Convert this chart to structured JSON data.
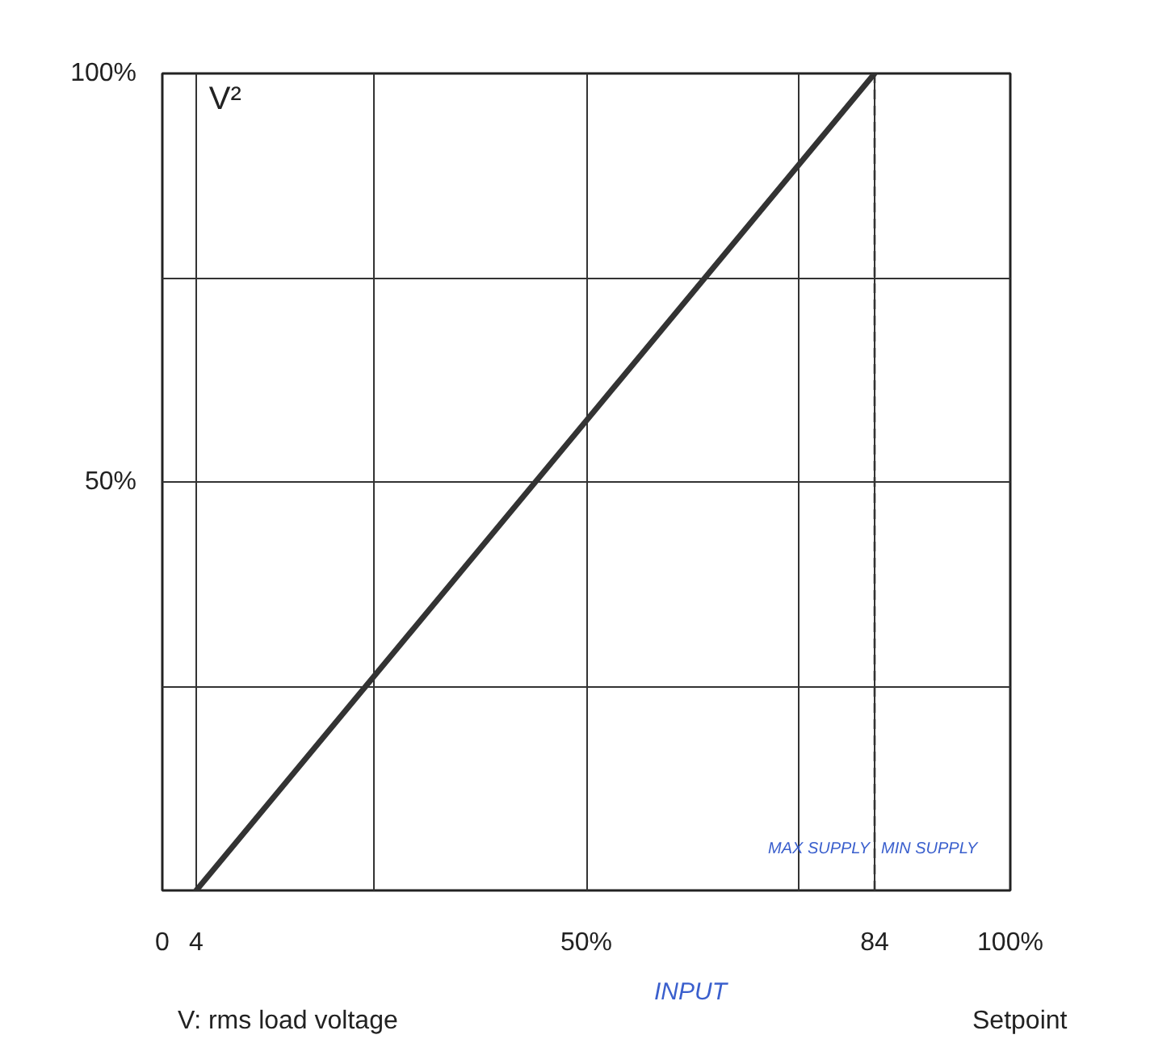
{
  "chart_data": {
    "type": "line",
    "ylabel": "V²",
    "xlabel": "V: rms load voltage",
    "xlim": [
      0,
      100
    ],
    "ylim": [
      0,
      100
    ],
    "xticks": [
      {
        "value": 0,
        "label": "0"
      },
      {
        "value": 4,
        "label": "4"
      },
      {
        "value": 25,
        "label": null
      },
      {
        "value": 50,
        "label": "50%"
      },
      {
        "value": 75,
        "label": null
      },
      {
        "value": 84,
        "label": "84"
      },
      {
        "value": 100,
        "label": "100%"
      }
    ],
    "yticks": [
      {
        "value": 0,
        "label": null
      },
      {
        "value": 25,
        "label": null
      },
      {
        "value": 50,
        "label": "50%"
      },
      {
        "value": 75,
        "label": null
      },
      {
        "value": 100,
        "label": "100%"
      }
    ],
    "grid": true,
    "series": [
      {
        "color": "#333333",
        "x": [
          4,
          84
        ],
        "values": [
          0,
          100
        ]
      }
    ],
    "ref_lines": [
      {
        "axis": "x",
        "value": 84,
        "color": "#333333",
        "line_style": "dashed"
      }
    ],
    "annotations": [
      "Setpoint",
      "INPUT",
      {
        "text": "MAX SUPPLY",
        "x": 84,
        "y": 4
      },
      "MIN SUPPLY"
    ]
  }
}
